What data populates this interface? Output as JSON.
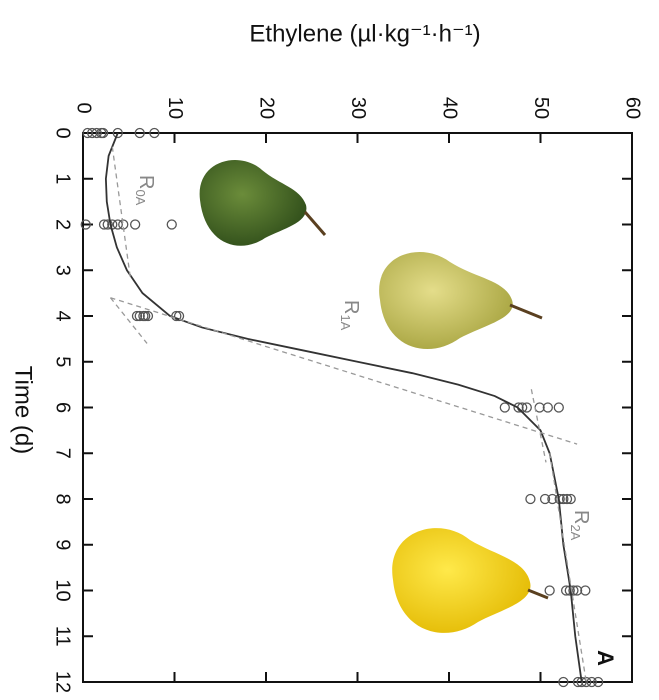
{
  "chart_data": {
    "type": "scatter",
    "title": "Ethylene (µl·kg⁻¹·h⁻¹)",
    "x_label": "Time (d)",
    "panel_label": "A",
    "annotations": [
      {
        "text": "R",
        "subscript": "0A"
      },
      {
        "text": "R",
        "subscript": "1A"
      },
      {
        "text": "R",
        "subscript": "2A"
      }
    ],
    "xlim": [
      0,
      12
    ],
    "xticks": [
      0,
      1,
      2,
      3,
      4,
      5,
      6,
      7,
      8,
      9,
      10,
      11,
      12
    ],
    "ylim": [
      0,
      60
    ],
    "yticks": [
      0,
      10,
      20,
      30,
      40,
      50,
      60
    ],
    "series": [
      {
        "style": "points",
        "color": "#555555",
        "x": [
          0,
          0,
          0,
          0,
          0,
          0,
          0,
          0,
          2,
          2,
          2,
          2,
          2,
          2,
          2,
          2,
          4,
          4,
          4,
          4,
          4,
          4,
          4,
          6,
          6,
          6,
          6,
          6,
          6,
          6,
          8,
          8,
          8,
          8,
          8,
          8,
          8,
          10,
          10,
          10,
          10,
          10,
          10,
          12,
          12,
          12,
          12,
          12,
          12
        ],
        "values": [
          0.5,
          1,
          1.5,
          2,
          2.2,
          3.8,
          6.2,
          7.8,
          0.3,
          2.3,
          2.7,
          3.2,
          3.8,
          4.4,
          5.7,
          9.7,
          5.9,
          6.2,
          6.6,
          6.8,
          7.1,
          10.2,
          10.5,
          46.1,
          47.6,
          48,
          48.5,
          49.9,
          50.8,
          52,
          48.9,
          50.5,
          51.3,
          52.1,
          52.5,
          52.9,
          53.3,
          51,
          52.8,
          53.2,
          53.6,
          54,
          54.9,
          52.5,
          54.1,
          54.5,
          55,
          55.6,
          56.3
        ]
      },
      {
        "style": "line",
        "color": "#333333",
        "x": [
          0,
          0.5,
          1,
          1.5,
          2,
          2.5,
          3,
          3.5,
          4,
          4.25,
          4.5,
          4.75,
          5,
          5.25,
          5.5,
          5.75,
          6,
          6.5,
          7,
          7.5,
          8,
          9,
          10,
          11,
          12
        ],
        "values": [
          3.8,
          2.8,
          2.5,
          2.6,
          3,
          3.7,
          4.8,
          6.5,
          9.5,
          13,
          18,
          24,
          30,
          36,
          41,
          45,
          47.5,
          50,
          51,
          51.5,
          52,
          52.5,
          53.3,
          53.8,
          54.5
        ]
      },
      {
        "style": "dashed",
        "color": "#999999",
        "x": [
          0.3,
          3.2
        ],
        "values": [
          3.2,
          5.2
        ]
      },
      {
        "style": "dashed",
        "color": "#999999",
        "x": [
          3.6,
          4.6
        ],
        "values": [
          3,
          7
        ]
      },
      {
        "style": "dashed",
        "color": "#999999",
        "x": [
          3.6,
          6.8
        ],
        "values": [
          3,
          54
        ]
      },
      {
        "style": "dashed",
        "color": "#999999",
        "x": [
          5.6,
          7.2
        ],
        "values": [
          49,
          50.6
        ]
      },
      {
        "style": "dashed",
        "color": "#999999",
        "x": [
          7,
          12
        ],
        "values": [
          51,
          55
        ]
      }
    ]
  }
}
